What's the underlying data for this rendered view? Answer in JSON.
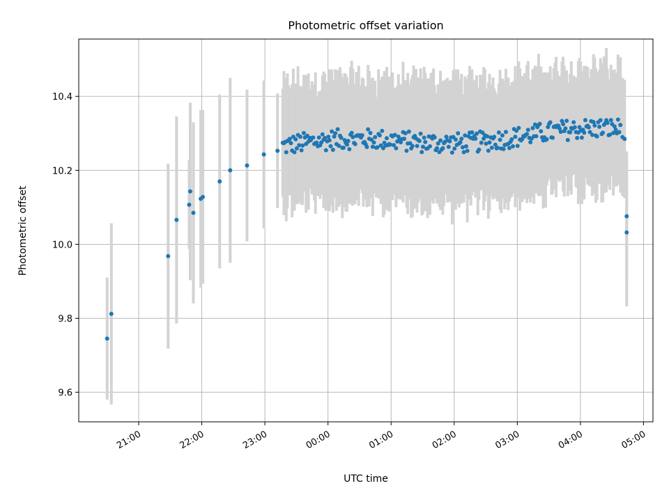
{
  "chart_data": {
    "type": "scatter",
    "title": "Photometric offset variation",
    "xlabel": "UTC time",
    "ylabel": "Photometric offset",
    "x_ticks": [
      "21:00",
      "22:00",
      "23:00",
      "00:00",
      "01:00",
      "02:00",
      "03:00",
      "04:00",
      "05:00"
    ],
    "y_ticks": [
      "9.6",
      "9.8",
      "10.0",
      "10.2",
      "10.4"
    ],
    "xlim": [
      "20:03",
      "05:09"
    ],
    "ylim": [
      9.52,
      10.555
    ],
    "grid": true,
    "point_color": "#1f77b4",
    "errorbar_color": "#d3d3d3",
    "series_note": "",
    "sparse_points": [
      {
        "t": "20:30",
        "y": 9.745,
        "e": 0.165
      },
      {
        "t": "20:34",
        "y": 9.812,
        "e": 0.245
      },
      {
        "t": "21:28",
        "y": 9.968,
        "e": 0.25
      },
      {
        "t": "21:36",
        "y": 10.066,
        "e": 0.28
      },
      {
        "t": "21:48",
        "y": 10.107,
        "e": 0.12
      },
      {
        "t": "21:49",
        "y": 10.143,
        "e": 0.24
      },
      {
        "t": "21:52",
        "y": 10.085,
        "e": 0.245
      },
      {
        "t": "21:59",
        "y": 10.123,
        "e": 0.24
      },
      {
        "t": "22:01",
        "y": 10.128,
        "e": 0.235
      },
      {
        "t": "22:17",
        "y": 10.17,
        "e": 0.235
      },
      {
        "t": "22:27",
        "y": 10.2,
        "e": 0.25
      },
      {
        "t": "22:43",
        "y": 10.213,
        "e": 0.205
      },
      {
        "t": "22:59",
        "y": 10.243,
        "e": 0.2
      },
      {
        "t": "23:12",
        "y": 10.253,
        "e": 0.155
      }
    ],
    "dense_segments": [
      {
        "start": "23:17",
        "end": "04:38",
        "count": 290,
        "y_start": 10.265,
        "y_end": 10.305,
        "spread": 0.028,
        "e": 0.16
      },
      {
        "start": "04:40",
        "end": "04:42",
        "count": 2,
        "y_start": 10.29,
        "y_end": 10.285,
        "spread": 0.0,
        "e": 0.16
      },
      {
        "start": "04:44",
        "end": "04:44",
        "count": 1,
        "y_start": 10.076,
        "y_end": 10.076,
        "spread": 0.0,
        "e": 0.175
      },
      {
        "start": "04:44",
        "end": "04:44",
        "count": 1,
        "y_start": 10.032,
        "y_end": 10.032,
        "spread": 0.0,
        "e": 0.2
      }
    ]
  }
}
